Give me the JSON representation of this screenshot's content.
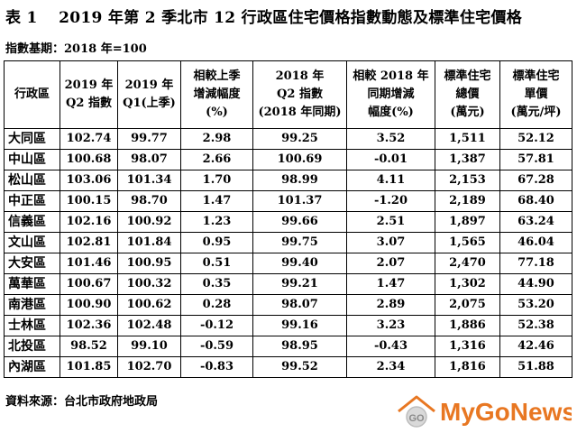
{
  "title": "表 1　 2019 年第 2 季北市 12 行政區住宅價格指數動態及標準住宅價格",
  "base_period": "指數基期：2018 年=100",
  "table": {
    "headers": [
      [
        "行政區"
      ],
      [
        "2019 年",
        "Q2 指數"
      ],
      [
        "2019 年",
        "Q1(上季)"
      ],
      [
        "相較上季",
        "增減幅度",
        "(%)"
      ],
      [
        "2018 年",
        "Q2 指數",
        "(2018 年同期)"
      ],
      [
        "相較 2018 年",
        "同期增減",
        "幅度(%)"
      ],
      [
        "標準住宅",
        "總價",
        "(萬元)"
      ],
      [
        "標準住宅",
        "單價",
        "(萬元/坪)"
      ]
    ],
    "rows": [
      [
        "大同區",
        "102.74",
        "99.77",
        "2.98",
        "99.25",
        "3.52",
        "1,511",
        "52.12"
      ],
      [
        "中山區",
        "100.68",
        "98.07",
        "2.66",
        "100.69",
        "-0.01",
        "1,387",
        "57.81"
      ],
      [
        "松山區",
        "103.06",
        "101.34",
        "1.70",
        "98.99",
        "4.11",
        "2,153",
        "67.28"
      ],
      [
        "中正區",
        "100.15",
        "98.70",
        "1.47",
        "101.37",
        "-1.20",
        "2,189",
        "68.40"
      ],
      [
        "信義區",
        "102.16",
        "100.92",
        "1.23",
        "99.66",
        "2.51",
        "1,897",
        "63.24"
      ],
      [
        "文山區",
        "102.81",
        "101.84",
        "0.95",
        "99.75",
        "3.07",
        "1,565",
        "46.04"
      ],
      [
        "大安區",
        "101.46",
        "100.95",
        "0.51",
        "99.40",
        "2.07",
        "2,470",
        "77.18"
      ],
      [
        "萬華區",
        "100.67",
        "100.32",
        "0.35",
        "99.21",
        "1.47",
        "1,302",
        "44.90"
      ],
      [
        "南港區",
        "100.90",
        "100.62",
        "0.28",
        "98.07",
        "2.89",
        "2,075",
        "53.20"
      ],
      [
        "士林區",
        "102.36",
        "102.48",
        "-0.12",
        "99.16",
        "3.23",
        "1,886",
        "52.38"
      ],
      [
        "北投區",
        "98.52",
        "99.10",
        "-0.59",
        "98.95",
        "-0.43",
        "1,316",
        "42.46"
      ],
      [
        "內湖區",
        "101.85",
        "102.70",
        "-0.83",
        "99.52",
        "2.34",
        "1,816",
        "51.88"
      ]
    ]
  },
  "source": "資料來源：台北市政府地政局",
  "watermark": {
    "brand": "MyGoNews",
    "emblem_text": "GO",
    "colors": {
      "text": "#e87722",
      "emblem": "#bdbdbd",
      "roof": "#e87722"
    }
  }
}
